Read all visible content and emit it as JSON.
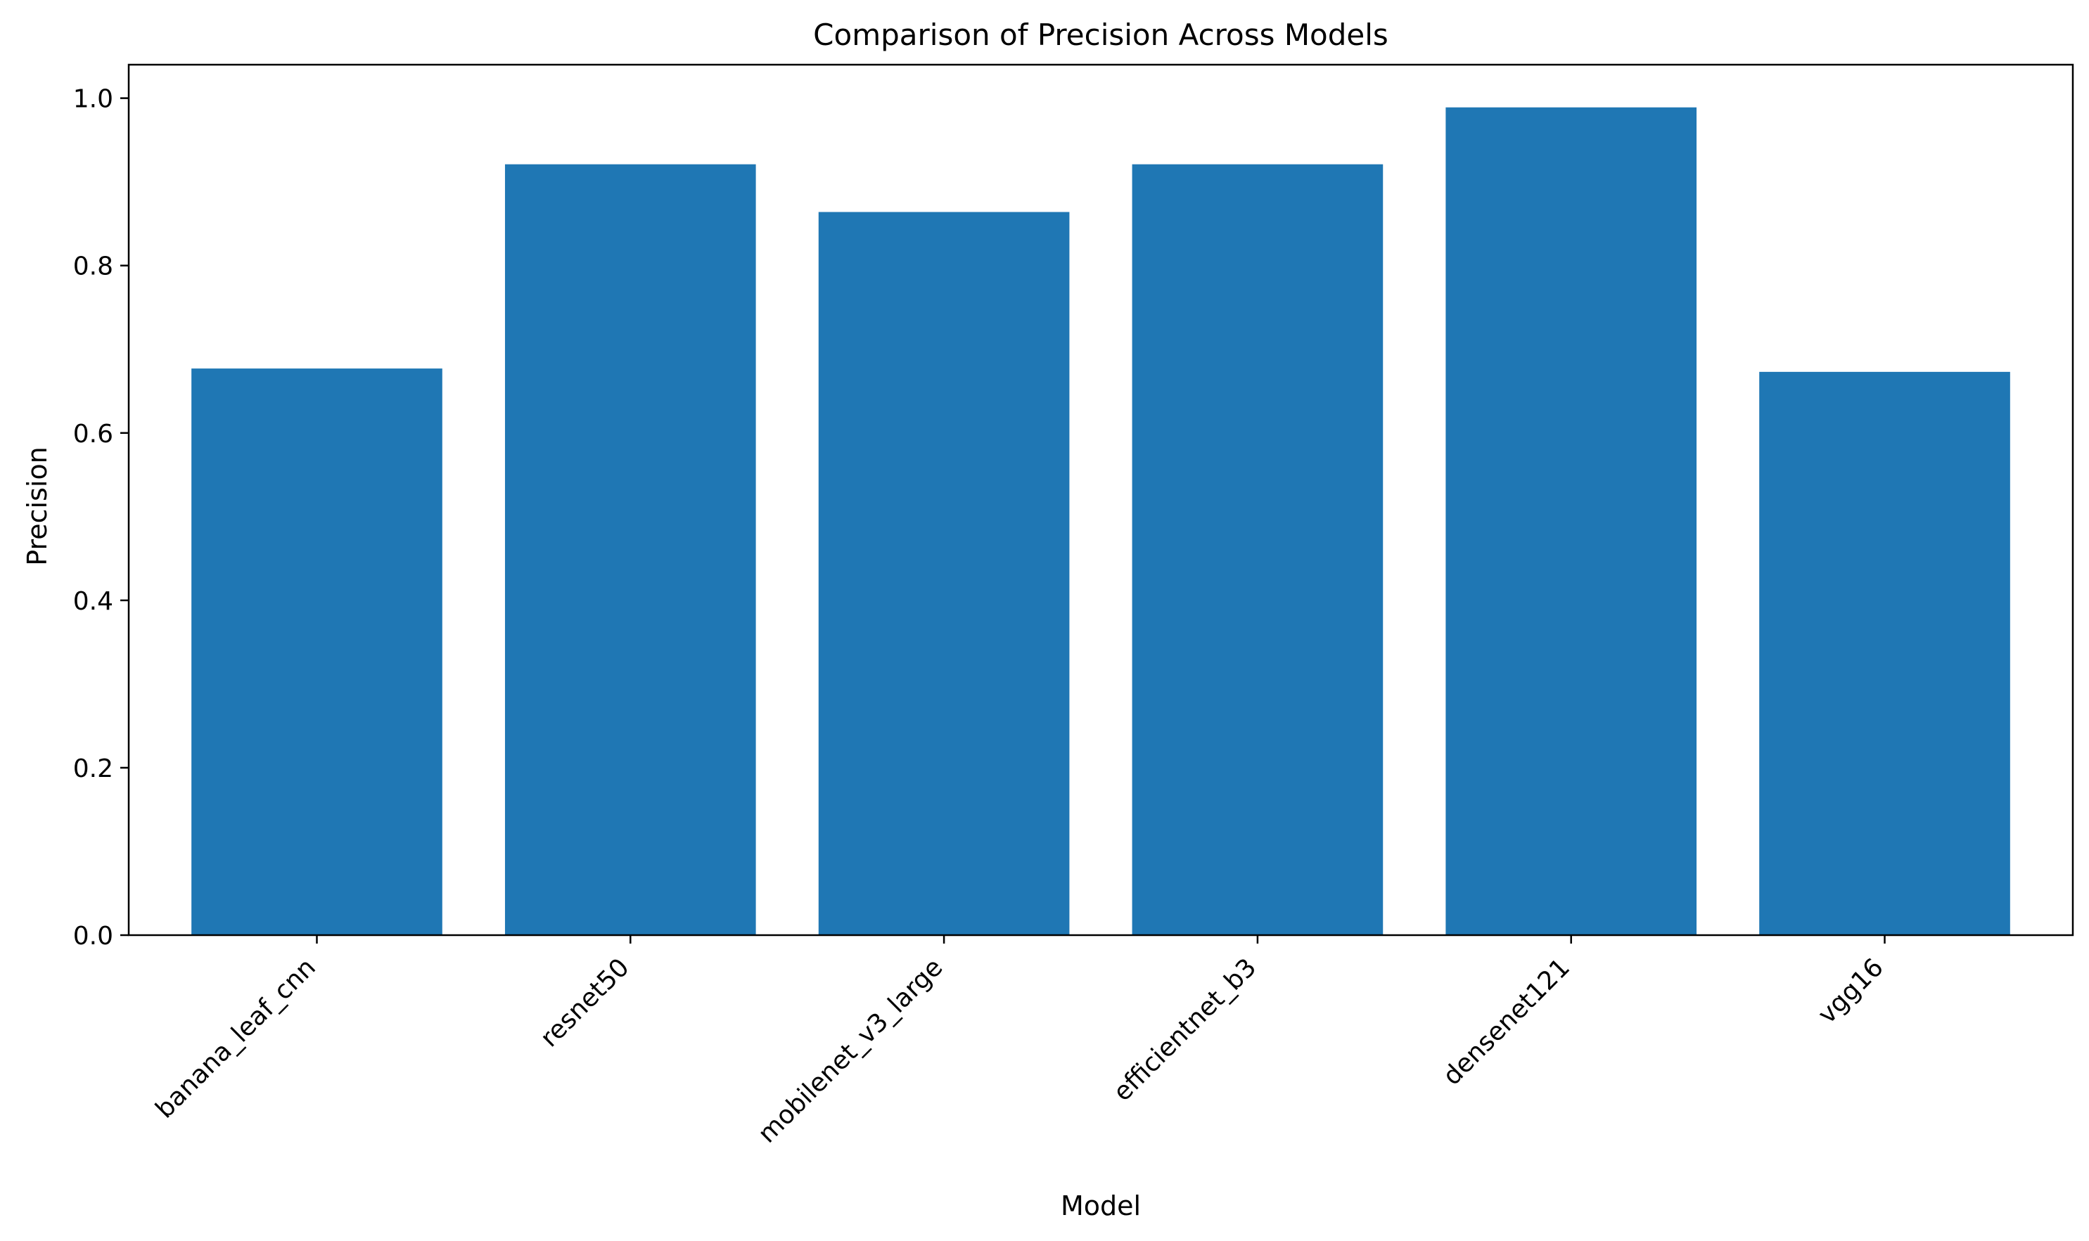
{
  "chart_data": {
    "type": "bar",
    "title": "Comparison of Precision Across Models",
    "xlabel": "Model",
    "ylabel": "Precision",
    "categories": [
      "banana_leaf_cnn",
      "resnet50",
      "mobilenet_v3_large",
      "efficientnet_b3",
      "densenet121",
      "vgg16"
    ],
    "values": [
      0.677,
      0.921,
      0.864,
      0.921,
      0.989,
      0.673
    ],
    "ylim": [
      0,
      1.04
    ],
    "yticks": [
      0.0,
      0.2,
      0.4,
      0.6,
      0.8,
      1.0
    ],
    "ytick_labels": [
      "0.0",
      "0.2",
      "0.4",
      "0.6",
      "0.8",
      "1.0"
    ],
    "bar_color": "#1f77b4",
    "grid": false,
    "legend": "none"
  }
}
